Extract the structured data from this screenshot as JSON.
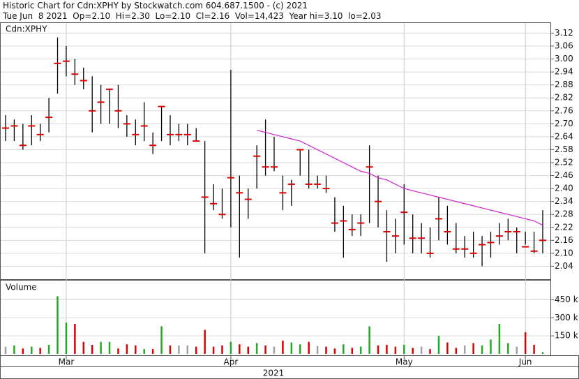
{
  "header": {
    "line1": "Historic Chart for Cdn:XPHY by Stockwatch.com 604.687.1500 - (c) 2021",
    "line2": "Tue Jun  8 2021  Op=2.10  Hi=2.30  Lo=2.10  Cl=2.16  Vol=14,423  Year hi=3.10  lo=2.03"
  },
  "chart_data": [
    {
      "type": "ohlc",
      "title": "Cdn:XPHY",
      "categories": [
        null,
        null,
        null,
        null,
        null,
        null,
        null,
        "Mar",
        null,
        null,
        null,
        null,
        null,
        null,
        null,
        null,
        null,
        null,
        null,
        null,
        null,
        null,
        null,
        null,
        null,
        null,
        "Apr",
        null,
        null,
        null,
        null,
        null,
        null,
        null,
        null,
        null,
        null,
        null,
        null,
        null,
        null,
        null,
        null,
        null,
        null,
        null,
        "May",
        null,
        null,
        null,
        null,
        null,
        null,
        null,
        null,
        null,
        null,
        null,
        null,
        null,
        "Jun",
        null,
        null
      ],
      "year_label": "2021",
      "high": [
        2.74,
        2.72,
        2.7,
        2.74,
        2.7,
        2.82,
        3.1,
        3.06,
        3.0,
        2.96,
        2.92,
        2.88,
        2.86,
        2.88,
        2.74,
        2.72,
        2.8,
        2.66,
        2.78,
        2.74,
        2.7,
        2.7,
        2.68,
        2.62,
        2.42,
        2.4,
        2.95,
        2.46,
        2.4,
        2.6,
        2.72,
        2.64,
        2.46,
        2.44,
        2.58,
        2.58,
        2.46,
        2.46,
        2.36,
        2.32,
        2.28,
        2.28,
        2.6,
        2.46,
        2.3,
        2.26,
        2.42,
        2.28,
        2.24,
        2.22,
        2.36,
        2.32,
        2.24,
        2.18,
        2.2,
        2.18,
        2.2,
        2.24,
        2.26,
        2.22,
        2.2,
        2.2,
        2.3
      ],
      "low": [
        2.62,
        2.62,
        2.58,
        2.6,
        2.62,
        2.66,
        2.84,
        2.92,
        2.88,
        2.86,
        2.66,
        2.7,
        2.7,
        2.68,
        2.64,
        2.6,
        2.62,
        2.56,
        2.62,
        2.6,
        2.62,
        2.6,
        2.62,
        2.1,
        2.3,
        2.26,
        2.22,
        2.08,
        2.26,
        2.4,
        2.46,
        2.48,
        2.3,
        2.32,
        2.46,
        2.4,
        2.4,
        2.38,
        2.2,
        2.08,
        2.18,
        2.18,
        2.24,
        2.22,
        2.06,
        2.1,
        2.14,
        2.1,
        2.1,
        2.08,
        2.16,
        2.14,
        2.1,
        2.08,
        2.08,
        2.04,
        2.08,
        2.14,
        2.16,
        2.1,
        2.14,
        2.1,
        2.1
      ],
      "close": [
        2.68,
        2.69,
        2.6,
        2.69,
        2.65,
        2.73,
        2.98,
        2.99,
        2.93,
        2.9,
        2.76,
        2.8,
        2.86,
        2.76,
        2.7,
        2.65,
        2.69,
        2.6,
        2.78,
        2.65,
        2.65,
        2.65,
        2.62,
        2.36,
        2.33,
        2.28,
        2.45,
        2.38,
        2.35,
        2.55,
        2.5,
        2.5,
        2.38,
        2.42,
        2.58,
        2.42,
        2.42,
        2.4,
        2.24,
        2.25,
        2.21,
        2.24,
        2.5,
        2.34,
        2.2,
        2.18,
        2.29,
        2.17,
        2.17,
        2.1,
        2.26,
        2.2,
        2.12,
        2.12,
        2.1,
        2.14,
        2.15,
        2.18,
        2.2,
        2.2,
        2.13,
        2.11,
        2.16
      ],
      "bar_color": "#000000",
      "close_color": "#e00000",
      "moving_average": {
        "color": "#d020d0",
        "values": [
          null,
          null,
          null,
          null,
          null,
          null,
          null,
          null,
          null,
          null,
          null,
          null,
          null,
          null,
          null,
          null,
          null,
          null,
          null,
          null,
          null,
          null,
          null,
          null,
          null,
          null,
          null,
          null,
          null,
          2.67,
          2.66,
          2.65,
          2.64,
          2.63,
          2.62,
          2.6,
          2.58,
          2.56,
          2.54,
          2.52,
          2.5,
          2.48,
          2.47,
          2.45,
          2.44,
          2.42,
          2.4,
          2.39,
          2.38,
          2.37,
          2.36,
          2.35,
          2.34,
          2.33,
          2.32,
          2.31,
          2.3,
          2.29,
          2.28,
          2.27,
          2.26,
          2.25,
          2.23
        ]
      },
      "ylim": [
        1.98,
        3.17
      ],
      "yticks": [
        3.12,
        3.06,
        {
          "value": 3.0,
          "label": "3.00"
        },
        2.94,
        2.88,
        2.82,
        2.76,
        {
          "value": 2.7,
          "label": "2.70"
        },
        2.64,
        2.58,
        2.52,
        2.46,
        {
          "value": 2.4,
          "label": "2.40"
        },
        2.34,
        2.28,
        2.22,
        2.16,
        {
          "value": 2.1,
          "label": "2.10"
        },
        2.04
      ],
      "grid": true
    },
    {
      "type": "volume",
      "title": "Volume",
      "values": [
        60000,
        70000,
        45000,
        60000,
        50000,
        75000,
        480000,
        260000,
        250000,
        100000,
        75000,
        100000,
        100000,
        45000,
        80000,
        70000,
        40000,
        40000,
        230000,
        70000,
        70000,
        70000,
        60000,
        200000,
        60000,
        70000,
        100000,
        80000,
        60000,
        90000,
        70000,
        60000,
        110000,
        95000,
        80000,
        100000,
        65000,
        60000,
        45000,
        80000,
        50000,
        60000,
        230000,
        70000,
        75000,
        60000,
        75000,
        50000,
        60000,
        40000,
        150000,
        95000,
        50000,
        70000,
        90000,
        70000,
        120000,
        250000,
        90000,
        60000,
        180000,
        75000,
        15000
      ],
      "up_color": "#22aa22",
      "down_color": "#dd0000",
      "flat_color": "#a0a0a0",
      "ylim": [
        0,
        610000
      ],
      "yticks": [
        {
          "value": 150000,
          "label": "150 k"
        },
        {
          "value": 300000,
          "label": "300 k"
        },
        {
          "value": 450000,
          "label": "450 k"
        }
      ],
      "grid": true
    }
  ]
}
